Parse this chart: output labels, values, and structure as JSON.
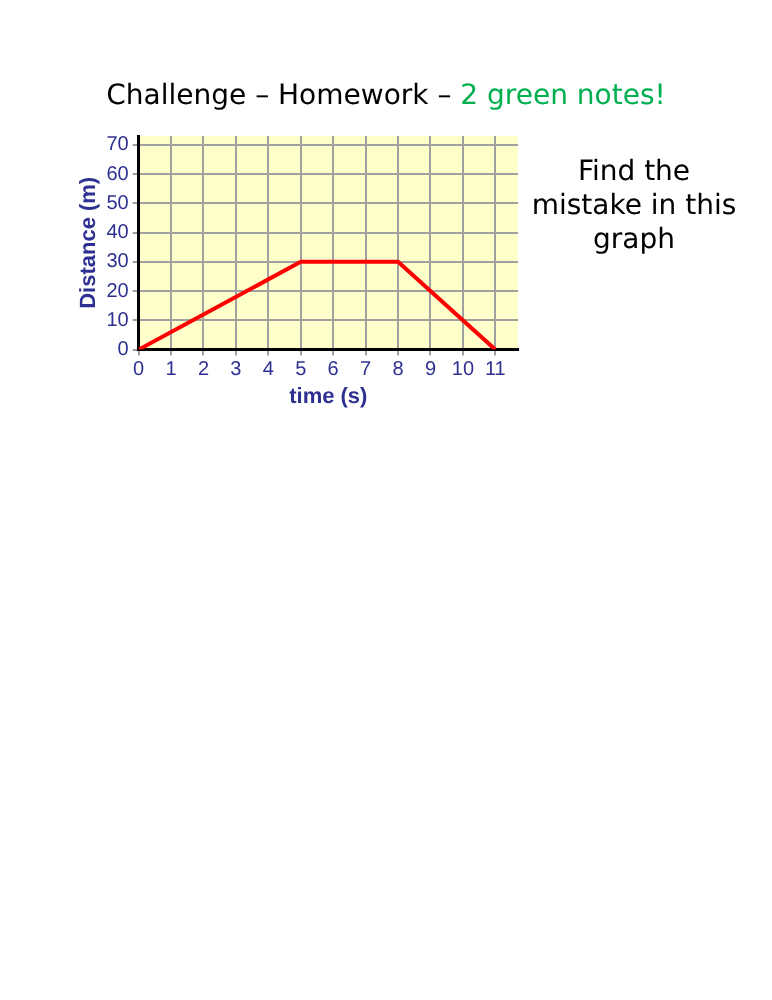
{
  "chart_data": {
    "type": "line",
    "title": "Challenge – Homework –",
    "subtitle": "2 green notes!",
    "xlabel": "time (s)",
    "ylabel": "Distance (m)",
    "annotations": [
      "Find the mistake in this graph"
    ],
    "x": [
      0,
      5,
      8,
      11
    ],
    "series": [
      {
        "color": "#ff0000",
        "values": [
          0,
          30,
          30,
          0
        ]
      }
    ],
    "xlim": [
      0,
      11.7
    ],
    "xticks": [
      0,
      1,
      2,
      3,
      4,
      5,
      6,
      7,
      8,
      9,
      10,
      11
    ],
    "ylim": [
      0,
      73
    ],
    "yticks": [
      0,
      10,
      20,
      30,
      40,
      50,
      60,
      70
    ],
    "grid": true,
    "legend": false,
    "marker": "none",
    "line_style": "solid"
  }
}
